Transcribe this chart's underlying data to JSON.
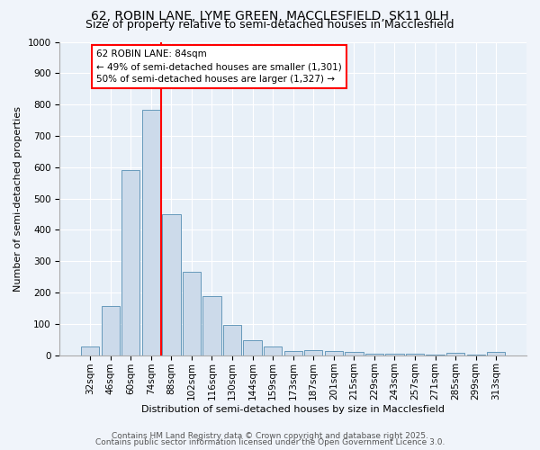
{
  "title_line1": "62, ROBIN LANE, LYME GREEN, MACCLESFIELD, SK11 0LH",
  "title_line2": "Size of property relative to semi-detached houses in Macclesfield",
  "xlabel": "Distribution of semi-detached houses by size in Macclesfield",
  "ylabel": "Number of semi-detached properties",
  "categories": [
    "32sqm",
    "46sqm",
    "60sqm",
    "74sqm",
    "88sqm",
    "102sqm",
    "116sqm",
    "130sqm",
    "144sqm",
    "159sqm",
    "173sqm",
    "187sqm",
    "201sqm",
    "215sqm",
    "229sqm",
    "243sqm",
    "257sqm",
    "271sqm",
    "285sqm",
    "299sqm",
    "313sqm"
  ],
  "values": [
    27,
    157,
    592,
    783,
    450,
    267,
    190,
    97,
    48,
    27,
    13,
    15,
    13,
    11,
    5,
    5,
    5,
    3,
    8,
    3,
    10
  ],
  "bar_color": "#ccdaea",
  "bar_edge_color": "#6699bb",
  "vline_x": 3.5,
  "vline_color": "red",
  "annotation_title": "62 ROBIN LANE: 84sqm",
  "annotation_line1": "← 49% of semi-detached houses are smaller (1,301)",
  "annotation_line2": "50% of semi-detached houses are larger (1,327) →",
  "annotation_box_facecolor": "white",
  "annotation_box_edgecolor": "red",
  "footnote_line1": "Contains HM Land Registry data © Crown copyright and database right 2025.",
  "footnote_line2": "Contains public sector information licensed under the Open Government Licence 3.0.",
  "fig_facecolor": "#f0f4fa",
  "plot_facecolor": "#e8f0f8",
  "ylim": [
    0,
    1000
  ],
  "yticks": [
    0,
    100,
    200,
    300,
    400,
    500,
    600,
    700,
    800,
    900,
    1000
  ],
  "title1_fontsize": 10,
  "title2_fontsize": 9,
  "axis_label_fontsize": 8,
  "tick_fontsize": 7.5,
  "footnote_fontsize": 6.5
}
